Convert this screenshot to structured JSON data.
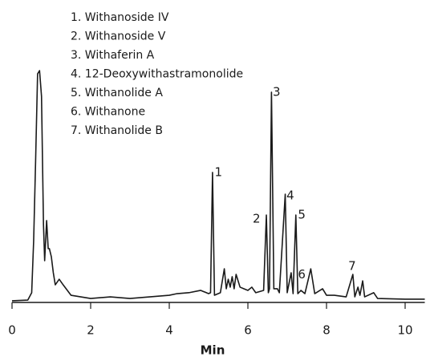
{
  "chart_data": {
    "type": "line",
    "legend_items": [
      "1. Withanoside IV",
      "2. Withanoside V",
      "3. Withaferin A",
      "4. 12-Deoxywithastramonolide",
      "5. Withanolide A",
      "6. Withanone",
      "7. Withanolide B"
    ],
    "x_label": "Min",
    "xlim": [
      0,
      10.5
    ],
    "xticks": [
      0,
      2,
      4,
      6,
      8,
      10
    ],
    "ylim": [
      0,
      100
    ],
    "color": "#1a1a1a",
    "x": [
      0,
      0.4,
      0.5,
      0.55,
      0.6,
      0.65,
      0.7,
      0.75,
      0.8,
      0.83,
      0.88,
      0.92,
      0.95,
      1.0,
      1.05,
      1.1,
      1.2,
      1.3,
      1.5,
      2.0,
      2.5,
      3.0,
      3.5,
      4.0,
      4.2,
      4.5,
      4.8,
      5.0,
      5.05,
      5.1,
      5.15,
      5.3,
      5.4,
      5.45,
      5.5,
      5.55,
      5.6,
      5.65,
      5.7,
      5.8,
      5.9,
      6.0,
      6.1,
      6.2,
      6.4,
      6.47,
      6.52,
      6.55,
      6.6,
      6.66,
      6.75,
      6.8,
      6.95,
      7.0,
      7.1,
      7.15,
      7.22,
      7.27,
      7.35,
      7.45,
      7.6,
      7.7,
      7.9,
      8.0,
      8.2,
      8.5,
      8.67,
      8.72,
      8.8,
      8.85,
      8.92,
      8.97,
      9.2,
      9.3,
      10.0,
      10.5
    ],
    "values": [
      0.7,
      1.0,
      4.2,
      26.6,
      61.2,
      98.6,
      100,
      88.9,
      33.6,
      18.0,
      35.3,
      23.2,
      23.2,
      19.7,
      12.8,
      7.6,
      10.0,
      7.6,
      3.1,
      1.7,
      2.4,
      1.7,
      2.4,
      3.1,
      3.8,
      4.2,
      5.2,
      3.8,
      4.2,
      56.1,
      3.1,
      4.2,
      14.5,
      5.9,
      10.0,
      6.6,
      11.1,
      5.9,
      12.1,
      6.6,
      5.9,
      5.2,
      6.6,
      4.2,
      5.2,
      37.7,
      4.2,
      5.9,
      90.7,
      5.9,
      5.9,
      4.2,
      46.7,
      4.2,
      12.8,
      3.8,
      37.7,
      3.8,
      5.2,
      3.8,
      14.5,
      3.8,
      5.9,
      3.1,
      3.1,
      2.4,
      12.1,
      2.4,
      6.6,
      3.1,
      9.3,
      2.4,
      4.2,
      1.7,
      1.4,
      1.4
    ],
    "annotations": [
      {
        "text": "1",
        "x": 5.25,
        "y": 56
      },
      {
        "text": "2",
        "x": 6.22,
        "y": 36
      },
      {
        "text": "3",
        "x": 6.73,
        "y": 90.7
      },
      {
        "text": "4",
        "x": 7.08,
        "y": 46
      },
      {
        "text": "5",
        "x": 7.37,
        "y": 37.7
      },
      {
        "text": "6",
        "x": 7.37,
        "y": 12
      },
      {
        "text": "7",
        "x": 8.65,
        "y": 15.6
      }
    ]
  }
}
